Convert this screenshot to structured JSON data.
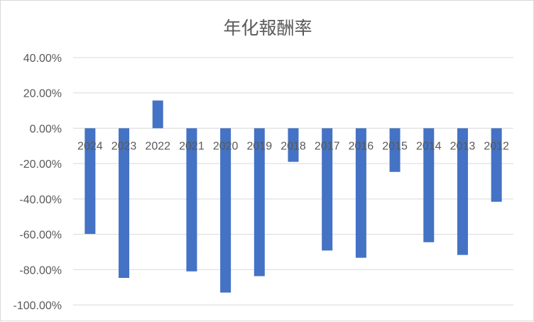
{
  "chart_data": {
    "type": "bar",
    "title": "年化報酬率",
    "xlabel": "",
    "ylabel": "",
    "categories": [
      "2024",
      "2023",
      "2022",
      "2021",
      "2020",
      "2019",
      "2018",
      "2017",
      "2016",
      "2015",
      "2014",
      "2013",
      "2012"
    ],
    "series": [
      {
        "values": [
          -59.8,
          -84.7,
          15.7,
          -81.0,
          -93.0,
          -83.7,
          -19.0,
          -69.2,
          -73.3,
          -24.7,
          -64.5,
          -71.7,
          -41.6
        ]
      }
    ],
    "ylim": [
      -100,
      40
    ],
    "yticks": [
      "40.00%",
      "20.00%",
      "0.00%",
      "-20.00%",
      "-40.00%",
      "-60.00%",
      "-80.00%",
      "-100.00%"
    ],
    "ytick_values": [
      40,
      20,
      0,
      -20,
      -40,
      -60,
      -80,
      -100
    ],
    "grid": true,
    "legend": "none",
    "bar_color": "#4472c4"
  }
}
